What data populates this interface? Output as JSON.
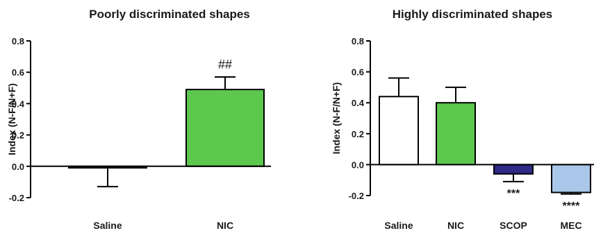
{
  "chart_data": [
    {
      "type": "bar",
      "title": "Poorly discriminated shapes",
      "ylabel": "Index (N-F/N+F)",
      "ylim": [
        -0.2,
        0.8
      ],
      "yticks": [
        "0.8",
        "0.6",
        "0.4",
        "0.2",
        "0.0",
        "-0.2"
      ],
      "categories": [
        "Saline",
        "NIC"
      ],
      "values": [
        -0.01,
        0.49
      ],
      "errors": [
        0.12,
        0.08
      ],
      "colors": [
        "#ffffff",
        "#5cc84e"
      ],
      "annotations": [
        "",
        "##"
      ]
    },
    {
      "type": "bar",
      "title": "Highly discriminated shapes",
      "ylabel": "Index (N-F/N+F)",
      "ylim": [
        -0.2,
        0.8
      ],
      "yticks": [
        "0.8",
        "0.6",
        "0.4",
        "0.2",
        "0.0",
        "-0.2"
      ],
      "categories": [
        "Saline",
        "NIC",
        "SCOP",
        "MEC"
      ],
      "values": [
        0.44,
        0.4,
        -0.06,
        -0.18
      ],
      "errors": [
        0.12,
        0.1,
        0.05,
        0.01
      ],
      "colors": [
        "#ffffff",
        "#5cc84e",
        "#2e2a86",
        "#a9c7e8"
      ],
      "annotations": [
        "",
        "",
        "***",
        "****"
      ]
    }
  ]
}
